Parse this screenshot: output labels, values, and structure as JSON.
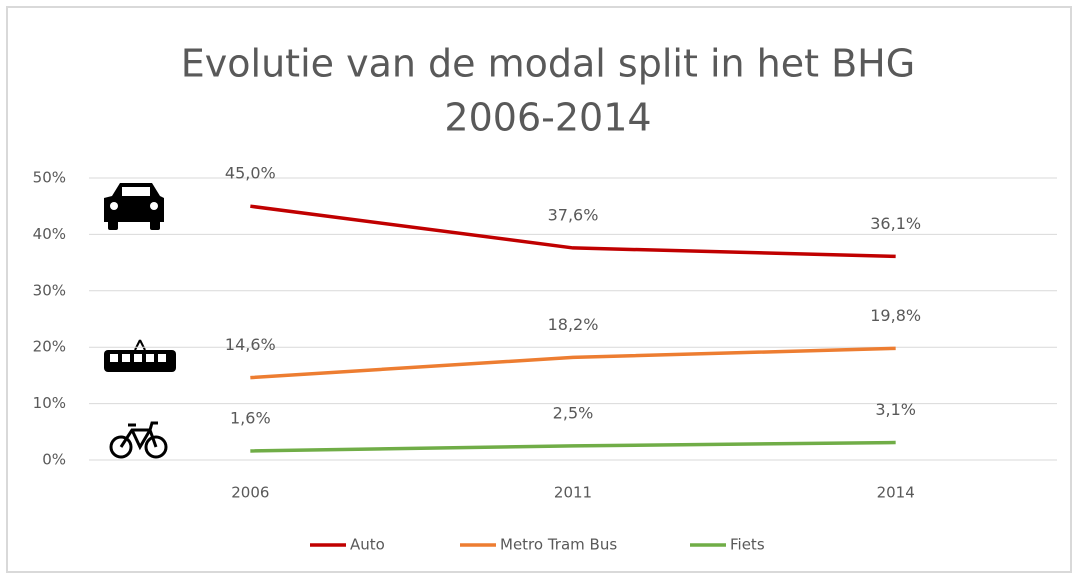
{
  "chart_data": {
    "type": "line",
    "title": "Evolutie van de modal split in het BHG",
    "subtitle": "2006-2014",
    "categories": [
      "2006",
      "2011",
      "2014"
    ],
    "series": [
      {
        "name": "Auto",
        "color": "#c00000",
        "values": [
          45.0,
          37.6,
          36.1
        ],
        "value_labels": [
          "45,0%",
          "37,6%",
          "36,1%"
        ]
      },
      {
        "name": "Metro Tram Bus",
        "color": "#ed7d31",
        "values": [
          14.6,
          18.2,
          19.8
        ],
        "value_labels": [
          "14,6%",
          "18,2%",
          "19,8%"
        ]
      },
      {
        "name": "Fiets",
        "color": "#70ad47",
        "values": [
          1.6,
          2.5,
          3.1
        ],
        "value_labels": [
          "1,6%",
          "2,5%",
          "3,1%"
        ]
      }
    ],
    "ylim": [
      0,
      50
    ],
    "yticks": [
      {
        "value": 0,
        "label": "0%"
      },
      {
        "value": 10,
        "label": "10%"
      },
      {
        "value": 20,
        "label": "20%"
      },
      {
        "value": 30,
        "label": "30%"
      },
      {
        "value": 40,
        "label": "40%"
      },
      {
        "value": 50,
        "label": "50%"
      }
    ],
    "grid": true,
    "legend": "bottom"
  }
}
